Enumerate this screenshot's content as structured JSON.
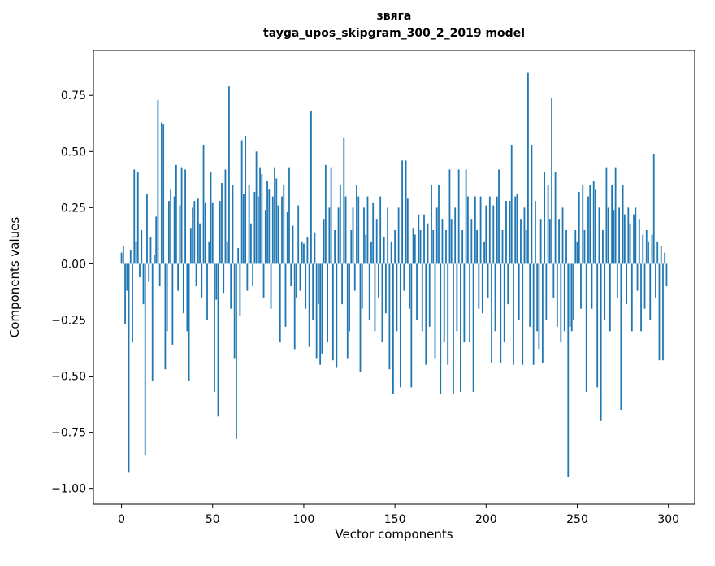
{
  "chart_data": {
    "type": "bar",
    "title": "звяга",
    "subtitle": "tayga_upos_skipgram_300_2_2019 model",
    "xlabel": "Vector components",
    "ylabel": "Components values",
    "bar_color": "#1f77b4",
    "grid": false,
    "legend": "none",
    "xlim": [
      -15.4,
      314.4
    ],
    "ylim": [
      -1.07,
      0.95
    ],
    "xticks": {
      "values": [
        0,
        50,
        100,
        150,
        200,
        250,
        300
      ],
      "labels": [
        "0",
        "50",
        "100",
        "150",
        "200",
        "250",
        "300"
      ]
    },
    "yticks": {
      "values": [
        0.75,
        0.5,
        0.25,
        0.0,
        -0.25,
        -0.5,
        -0.75,
        -1.0
      ],
      "labels": [
        "0.75",
        "0.50",
        "0.25",
        "0.00",
        "−0.25",
        "−0.50",
        "−0.75",
        "−1.00"
      ]
    },
    "x_start": 0,
    "bar_width": 0.8,
    "values": [
      0.05,
      0.08,
      -0.27,
      -0.12,
      -0.93,
      0.06,
      -0.35,
      0.42,
      0.1,
      0.41,
      -0.06,
      0.15,
      -0.18,
      -0.85,
      0.31,
      -0.08,
      0.12,
      -0.52,
      0.04,
      0.21,
      0.73,
      -0.1,
      0.63,
      0.62,
      -0.47,
      -0.3,
      0.28,
      0.33,
      -0.36,
      0.3,
      0.44,
      -0.12,
      0.26,
      0.43,
      -0.22,
      0.42,
      -0.3,
      -0.52,
      0.16,
      0.25,
      0.28,
      -0.1,
      0.29,
      0.18,
      -0.15,
      0.53,
      0.27,
      -0.25,
      0.1,
      0.41,
      0.27,
      -0.57,
      -0.16,
      -0.68,
      0.28,
      0.36,
      -0.13,
      0.42,
      0.1,
      0.79,
      -0.2,
      0.35,
      -0.42,
      -0.78,
      0.07,
      -0.23,
      0.55,
      0.31,
      0.57,
      -0.12,
      0.35,
      0.18,
      -0.1,
      0.32,
      0.5,
      0.3,
      0.43,
      0.4,
      -0.15,
      0.24,
      0.37,
      0.33,
      -0.2,
      0.3,
      0.43,
      0.38,
      0.26,
      -0.35,
      0.3,
      0.35,
      -0.28,
      0.23,
      0.43,
      -0.1,
      0.17,
      -0.38,
      -0.15,
      0.26,
      -0.12,
      0.1,
      0.09,
      -0.2,
      0.12,
      -0.37,
      0.68,
      -0.25,
      0.14,
      -0.42,
      -0.18,
      -0.45,
      -0.4,
      0.2,
      0.44,
      -0.35,
      0.25,
      0.43,
      -0.43,
      0.15,
      -0.46,
      0.25,
      0.35,
      -0.18,
      0.56,
      0.3,
      -0.42,
      -0.3,
      0.15,
      0.25,
      -0.12,
      0.35,
      0.3,
      -0.48,
      -0.2,
      0.25,
      0.13,
      0.3,
      -0.25,
      0.1,
      0.27,
      -0.3,
      0.2,
      -0.15,
      0.3,
      -0.35,
      0.12,
      -0.22,
      0.25,
      -0.47,
      0.1,
      -0.58,
      0.15,
      -0.3,
      0.25,
      -0.55,
      0.46,
      -0.12,
      0.46,
      0.29,
      -0.2,
      -0.55,
      0.16,
      0.13,
      -0.25,
      0.22,
      0.15,
      -0.3,
      0.22,
      -0.45,
      0.18,
      -0.28,
      0.35,
      0.15,
      -0.42,
      0.25,
      0.35,
      -0.58,
      0.2,
      -0.35,
      0.15,
      -0.45,
      0.42,
      0.2,
      -0.58,
      0.25,
      -0.3,
      0.42,
      -0.57,
      0.15,
      -0.35,
      0.42,
      0.3,
      -0.35,
      0.2,
      -0.57,
      0.3,
      0.15,
      -0.2,
      0.3,
      -0.22,
      0.1,
      0.26,
      -0.15,
      0.3,
      -0.44,
      0.26,
      -0.3,
      0.3,
      0.42,
      -0.44,
      0.15,
      -0.35,
      0.28,
      -0.18,
      0.28,
      0.53,
      -0.45,
      0.3,
      0.31,
      -0.25,
      0.2,
      -0.45,
      0.25,
      0.15,
      0.85,
      -0.28,
      0.53,
      -0.45,
      0.28,
      -0.3,
      -0.38,
      0.2,
      -0.44,
      0.41,
      -0.25,
      0.35,
      0.2,
      0.74,
      -0.15,
      0.41,
      -0.28,
      0.2,
      -0.35,
      0.25,
      -0.3,
      0.15,
      -0.95,
      -0.28,
      -0.3,
      -0.25,
      0.15,
      0.1,
      0.32,
      -0.2,
      0.35,
      0.15,
      -0.57,
      0.3,
      0.35,
      -0.2,
      0.37,
      0.33,
      -0.55,
      0.25,
      -0.7,
      0.15,
      -0.25,
      0.43,
      0.25,
      -0.3,
      0.35,
      0.24,
      0.43,
      -0.15,
      0.25,
      -0.65,
      0.35,
      0.22,
      -0.18,
      0.25,
      0.18,
      -0.3,
      0.22,
      0.25,
      -0.12,
      0.2,
      -0.3,
      0.13,
      -0.2,
      0.15,
      0.1,
      -0.25,
      0.13,
      0.49,
      -0.15,
      0.1,
      -0.43,
      0.08,
      -0.43,
      0.05,
      -0.1
    ]
  }
}
